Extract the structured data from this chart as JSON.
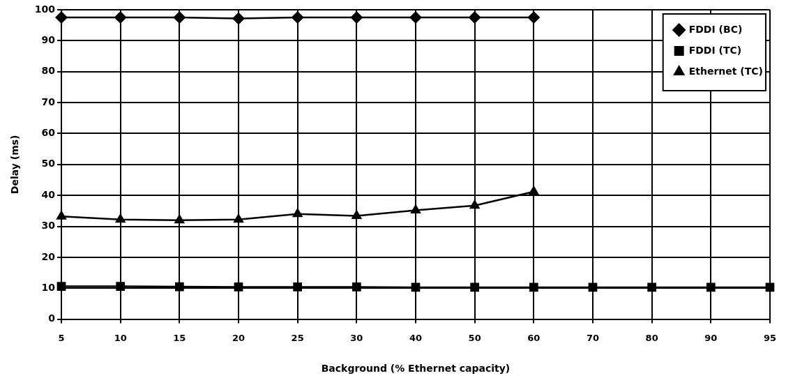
{
  "chart_data": {
    "type": "line",
    "xlabel": "Background (% Ethernet capacity)",
    "ylabel": "Delay (ms)",
    "categories": [
      "5",
      "10",
      "15",
      "20",
      "25",
      "30",
      "40",
      "50",
      "60",
      "70",
      "80",
      "90",
      "95"
    ],
    "series": [
      {
        "name": "FDDI (BC)",
        "color": "#000000",
        "marker": "diamond",
        "values": [
          97.5,
          97.5,
          97.5,
          97.2,
          97.5,
          97.5,
          97.5,
          97.5,
          97.5,
          null,
          null,
          null,
          null
        ]
      },
      {
        "name": "FDDI (TC)",
        "color": "#000000",
        "marker": "square",
        "values": [
          10.6,
          10.6,
          10.5,
          10.4,
          10.4,
          10.4,
          10.3,
          10.3,
          10.3,
          10.3,
          10.3,
          10.3,
          10.3
        ]
      },
      {
        "name": "Ethernet (TC)",
        "color": "#000000",
        "marker": "triangle",
        "values": [
          33.2,
          32.2,
          32,
          32.2,
          34,
          33.4,
          35.2,
          36.7,
          41.2,
          null,
          null,
          null,
          null
        ]
      }
    ],
    "ylim": [
      0,
      100
    ],
    "yticks": [
      0,
      10,
      20,
      30,
      40,
      50,
      60,
      70,
      80,
      90,
      100
    ],
    "grid": true,
    "legend": "top right"
  }
}
